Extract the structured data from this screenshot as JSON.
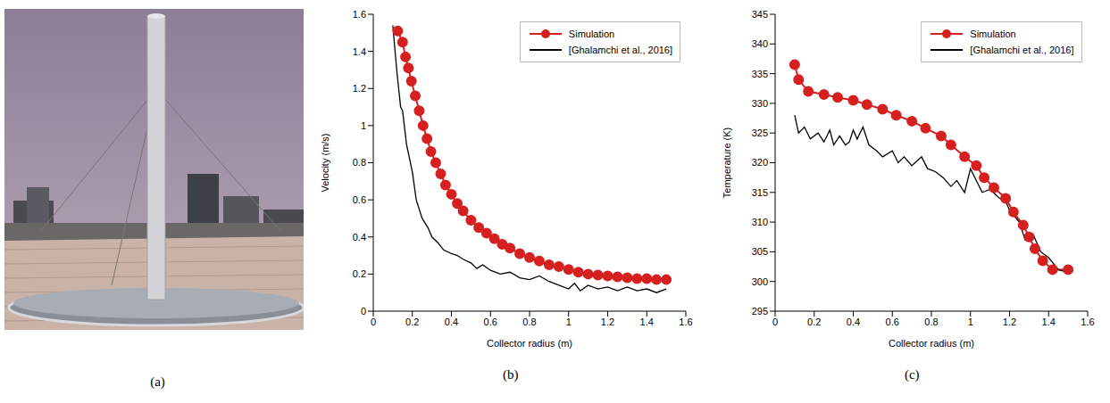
{
  "panel_labels": [
    "(a)",
    "(b)",
    "(c)"
  ],
  "chart_data": [
    {
      "type": "line",
      "x_label": "Collector radius (m)",
      "y_label": "Velocity (m/s)",
      "xlim": [
        0,
        1.6
      ],
      "xticks": [
        0,
        0.2,
        0.4,
        0.6,
        0.8,
        1,
        1.2,
        1.4,
        1.6
      ],
      "ylim": [
        0,
        1.6
      ],
      "yticks": [
        0,
        0.2,
        0.4,
        0.6,
        0.8,
        1,
        1.2,
        1.4,
        1.6
      ],
      "grid": false,
      "legend": "upper right",
      "series": [
        {
          "name": "Simulation",
          "color": "#d62020",
          "marker": "circle",
          "line_style": "solid",
          "x": [
            0.125,
            0.15,
            0.165,
            0.18,
            0.195,
            0.215,
            0.235,
            0.255,
            0.275,
            0.295,
            0.32,
            0.345,
            0.37,
            0.4,
            0.43,
            0.46,
            0.5,
            0.54,
            0.58,
            0.62,
            0.66,
            0.7,
            0.75,
            0.8,
            0.85,
            0.9,
            0.95,
            1.0,
            1.05,
            1.1,
            1.15,
            1.2,
            1.25,
            1.3,
            1.35,
            1.4,
            1.45,
            1.5
          ],
          "values": [
            1.51,
            1.45,
            1.37,
            1.31,
            1.24,
            1.16,
            1.08,
            1.0,
            0.93,
            0.86,
            0.8,
            0.74,
            0.68,
            0.63,
            0.58,
            0.54,
            0.49,
            0.45,
            0.42,
            0.39,
            0.36,
            0.34,
            0.31,
            0.29,
            0.27,
            0.25,
            0.24,
            0.225,
            0.21,
            0.2,
            0.195,
            0.19,
            0.185,
            0.18,
            0.175,
            0.175,
            0.17,
            0.17
          ]
        },
        {
          "name": "[Ghalamchi et al., 2016]",
          "color": "#000000",
          "marker": "none",
          "line_style": "solid",
          "x": [
            0.1,
            0.12,
            0.14,
            0.15,
            0.17,
            0.2,
            0.22,
            0.25,
            0.28,
            0.3,
            0.33,
            0.36,
            0.4,
            0.43,
            0.46,
            0.5,
            0.53,
            0.56,
            0.6,
            0.65,
            0.7,
            0.75,
            0.8,
            0.85,
            0.9,
            0.95,
            1.0,
            1.03,
            1.06,
            1.1,
            1.15,
            1.2,
            1.25,
            1.3,
            1.35,
            1.4,
            1.45,
            1.5
          ],
          "values": [
            1.54,
            1.3,
            1.1,
            1.08,
            0.9,
            0.75,
            0.6,
            0.5,
            0.45,
            0.4,
            0.37,
            0.33,
            0.31,
            0.3,
            0.28,
            0.26,
            0.23,
            0.25,
            0.22,
            0.2,
            0.21,
            0.18,
            0.17,
            0.19,
            0.16,
            0.14,
            0.12,
            0.15,
            0.11,
            0.14,
            0.12,
            0.13,
            0.11,
            0.13,
            0.11,
            0.12,
            0.1,
            0.12
          ]
        }
      ]
    },
    {
      "type": "line",
      "x_label": "Collector radius (m)",
      "y_label": "Temperature (K)",
      "xlim": [
        0,
        1.6
      ],
      "xticks": [
        0,
        0.2,
        0.4,
        0.6,
        0.8,
        1,
        1.2,
        1.4,
        1.6
      ],
      "ylim": [
        295,
        345
      ],
      "yticks": [
        295,
        300,
        305,
        310,
        315,
        320,
        325,
        330,
        335,
        340,
        345
      ],
      "grid": false,
      "legend": "upper right",
      "series": [
        {
          "name": "Simulation",
          "color": "#d62020",
          "marker": "circle",
          "line_style": "solid",
          "x": [
            0.1,
            0.12,
            0.17,
            0.25,
            0.32,
            0.4,
            0.47,
            0.55,
            0.62,
            0.7,
            0.77,
            0.85,
            0.9,
            0.97,
            1.03,
            1.07,
            1.12,
            1.18,
            1.22,
            1.27,
            1.3,
            1.33,
            1.37,
            1.42,
            1.5
          ],
          "values": [
            336.5,
            334,
            332,
            331.5,
            331,
            330.5,
            329.8,
            329,
            328,
            327,
            325.8,
            324.5,
            323,
            321,
            319.5,
            317.5,
            315.8,
            314,
            311.7,
            309.5,
            307.5,
            305.5,
            303.5,
            302,
            302
          ]
        },
        {
          "name": "[Ghalamchi et al., 2016]",
          "color": "#000000",
          "marker": "none",
          "line_style": "solid",
          "x": [
            0.1,
            0.12,
            0.15,
            0.18,
            0.22,
            0.25,
            0.28,
            0.3,
            0.33,
            0.36,
            0.38,
            0.4,
            0.42,
            0.45,
            0.48,
            0.52,
            0.55,
            0.6,
            0.63,
            0.66,
            0.7,
            0.75,
            0.78,
            0.82,
            0.86,
            0.9,
            0.93,
            0.97,
            1.0,
            1.03,
            1.06,
            1.1,
            1.15,
            1.18,
            1.2,
            1.25,
            1.28,
            1.32,
            1.36,
            1.4,
            1.45,
            1.5
          ],
          "values": [
            328,
            325,
            326,
            324,
            325,
            323.5,
            325.5,
            323,
            324.5,
            323,
            323.5,
            325.5,
            324,
            326,
            323,
            322,
            321,
            322,
            320,
            321,
            319.5,
            321,
            319,
            318.5,
            317.5,
            316,
            317,
            315,
            319,
            317,
            315,
            315.5,
            314,
            313.5,
            312,
            310,
            307,
            308,
            305,
            304,
            302,
            301.5
          ]
        }
      ]
    }
  ]
}
